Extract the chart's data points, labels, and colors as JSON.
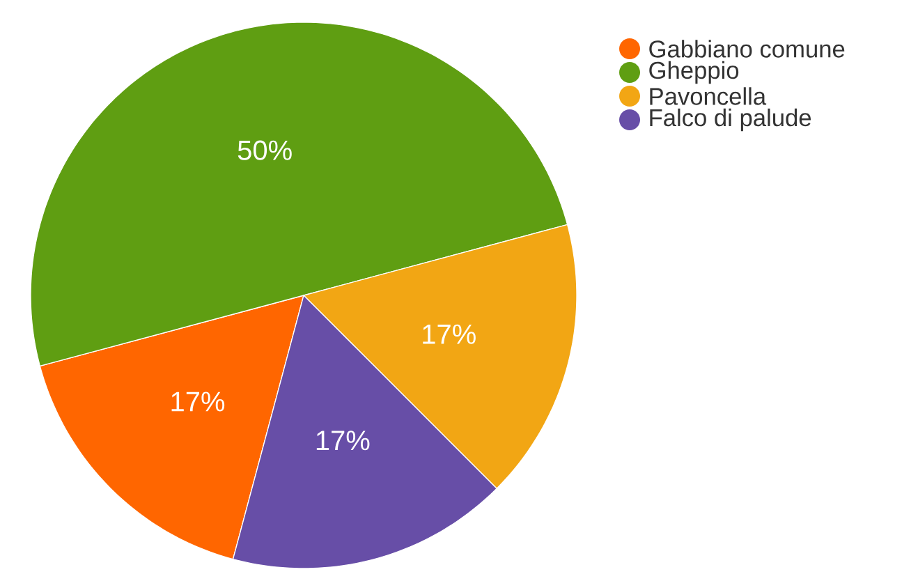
{
  "chart_data": {
    "type": "pie",
    "categories": [
      "Gabbiano comune",
      "Gheppio",
      "Pavoncella",
      "Falco di palude"
    ],
    "values": [
      16.67,
      50,
      16.67,
      16.67
    ],
    "value_labels": [
      "17%",
      "50%",
      "17%",
      "17%"
    ],
    "colors": [
      "#ff6600",
      "#5f9e12",
      "#f2a614",
      "#674ea7"
    ],
    "legend": "top right"
  }
}
